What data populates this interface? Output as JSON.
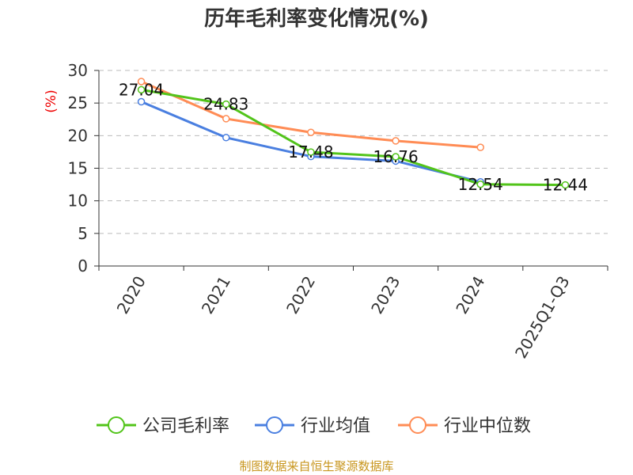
{
  "chart_data": {
    "type": "line",
    "title": "历年毛利率变化情况(%)",
    "ylabel": "(%)",
    "xlabel": "",
    "ylim": [
      0,
      30
    ],
    "yticks": [
      0,
      5,
      10,
      15,
      20,
      25,
      30
    ],
    "grid": true,
    "categories": [
      "2020",
      "2021",
      "2022",
      "2023",
      "2024",
      "2025Q1-Q3"
    ],
    "series": [
      {
        "name": "公司毛利率",
        "color": "#52c41a",
        "values": [
          27.04,
          24.83,
          17.48,
          16.76,
          12.54,
          12.44
        ],
        "show_labels": true
      },
      {
        "name": "行业均值",
        "color": "#4a7fe0",
        "values": [
          25.2,
          19.7,
          16.8,
          16.1,
          12.9,
          null
        ],
        "show_labels": false
      },
      {
        "name": "行业中位数",
        "color": "#ff8c55",
        "values": [
          28.3,
          22.6,
          20.5,
          19.2,
          18.2,
          null
        ],
        "show_labels": false
      }
    ],
    "legend_position": "bottom",
    "source": "制图数据来自恒生聚源数据库"
  }
}
